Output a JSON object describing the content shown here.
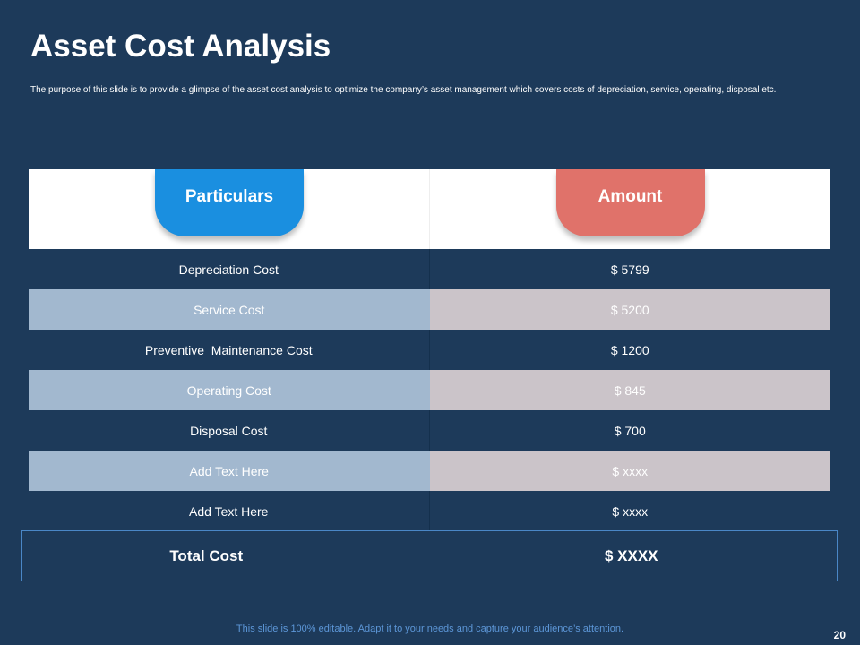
{
  "slide": {
    "title": "Asset Cost Analysis",
    "subtitle": "The purpose of this slide is to provide a glimpse of the asset cost analysis to optimize the company’s asset management which covers costs of depreciation, service, operating, disposal etc.",
    "footer": "This slide is 100% editable. Adapt it to your needs and capture your audience’s attention.",
    "page_number": "20"
  },
  "table": {
    "headers": {
      "particulars": "Particulars",
      "amount": "Amount"
    },
    "rows": [
      {
        "particular": "Depreciation Cost",
        "amount": "$ 5799"
      },
      {
        "particular": "Service Cost",
        "amount": "$ 5200"
      },
      {
        "particular": "Preventive  Maintenance Cost",
        "amount": "$ 1200"
      },
      {
        "particular": "Operating Cost",
        "amount": "$ 845"
      },
      {
        "particular": "Disposal Cost",
        "amount": "$ 700"
      },
      {
        "particular": "Add Text Here",
        "amount": "$ xxxx"
      },
      {
        "particular": "Add Text Here",
        "amount": "$ xxxx"
      }
    ],
    "total": {
      "label": "Total Cost",
      "amount": "$ XXXX"
    }
  },
  "colors": {
    "background": "#1d3a5a",
    "particulars_tab": "#1a8fe0",
    "amount_tab": "#e0726a",
    "light_row_left": "#a2b8cf",
    "light_row_right": "#cbc4c9"
  }
}
